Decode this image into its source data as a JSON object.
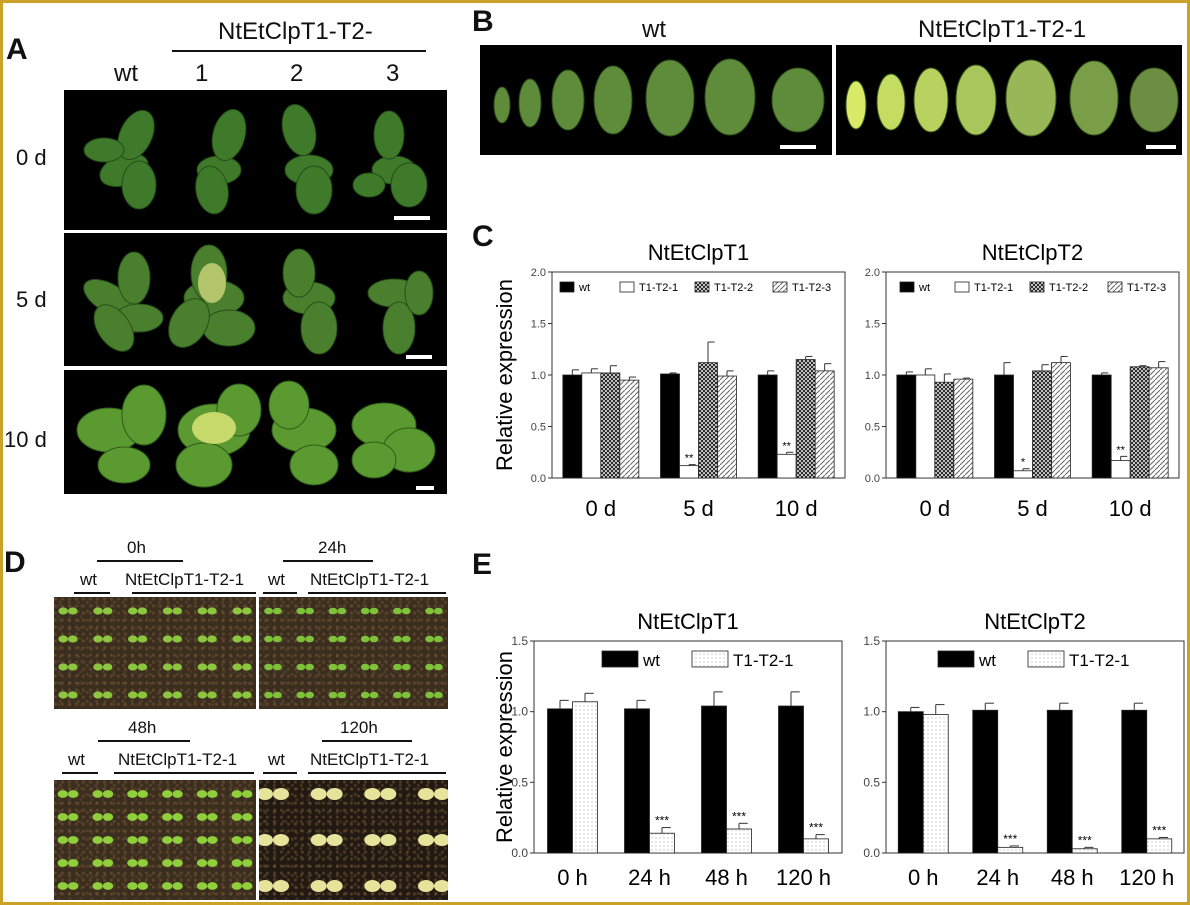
{
  "panels": {
    "A": {
      "letter": "A",
      "group_label": "NtEtClpT1-T2-",
      "col_labels": [
        "wt",
        "1",
        "2",
        "3"
      ],
      "row_labels": [
        "0 d",
        "5 d",
        "10 d"
      ]
    },
    "B": {
      "letter": "B",
      "left_label": "wt",
      "right_label": "NtEtClpT1-T2-1"
    },
    "C": {
      "letter": "C"
    },
    "D": {
      "letter": "D",
      "top_left": {
        "time": "0h",
        "wt": "wt",
        "line": "NtEtClpT1-T2-1"
      },
      "top_right": {
        "time": "24h",
        "wt": "wt",
        "line": "NtEtClpT1-T2-1"
      },
      "bottom_left": {
        "time": "48h",
        "wt": "wt",
        "line": "NtEtClpT1-T2-1"
      },
      "bottom_right": {
        "time": "120h",
        "wt": "wt",
        "line": "NtEtClpT1-T2-1"
      }
    },
    "E": {
      "letter": "E"
    }
  },
  "chart_data": [
    {
      "panel": "C",
      "type": "bar",
      "title": "NtEtClpT1",
      "ylabel": "Relative expression",
      "ylim": [
        0,
        2.0
      ],
      "yticks": [
        "0.0",
        "0.5",
        "1.0",
        "1.5",
        "2.0"
      ],
      "categories": [
        "0 d",
        "5 d",
        "10 d"
      ],
      "legend_position": "top",
      "series": [
        {
          "name": "wt",
          "values": [
            1.0,
            1.01,
            1.0
          ],
          "errors": [
            0.05,
            0.01,
            0.04
          ],
          "fill": "black"
        },
        {
          "name": "T1-T2-1",
          "values": [
            1.02,
            0.12,
            0.23
          ],
          "errors": [
            0.04,
            0.01,
            0.02
          ],
          "fill": "white",
          "sig": [
            "",
            "**",
            "**"
          ]
        },
        {
          "name": "T1-T2-2",
          "values": [
            1.02,
            1.12,
            1.15
          ],
          "errors": [
            0.07,
            0.2,
            0.03
          ],
          "fill": "crosshatch"
        },
        {
          "name": "T1-T2-3",
          "values": [
            0.95,
            0.99,
            1.04
          ],
          "errors": [
            0.03,
            0.05,
            0.07
          ],
          "fill": "hatch"
        }
      ]
    },
    {
      "panel": "C",
      "type": "bar",
      "title": "NtEtClpT2",
      "ylabel": "",
      "ylim": [
        0,
        2.0
      ],
      "yticks": [
        "0.0",
        "0.5",
        "1.0",
        "1.5",
        "2.0"
      ],
      "categories": [
        "0 d",
        "5 d",
        "10 d"
      ],
      "legend_position": "top",
      "series": [
        {
          "name": "wt",
          "values": [
            1.0,
            1.0,
            1.0
          ],
          "errors": [
            0.03,
            0.12,
            0.02
          ],
          "fill": "black"
        },
        {
          "name": "T1-T2-1",
          "values": [
            1.0,
            0.07,
            0.17
          ],
          "errors": [
            0.06,
            0.02,
            0.04
          ],
          "fill": "white",
          "sig": [
            "",
            "*",
            "**"
          ]
        },
        {
          "name": "T1-T2-2",
          "values": [
            0.93,
            1.04,
            1.08
          ],
          "errors": [
            0.08,
            0.06,
            0.01
          ],
          "fill": "crosshatch"
        },
        {
          "name": "T1-T2-3",
          "values": [
            0.96,
            1.12,
            1.07
          ],
          "errors": [
            0.01,
            0.06,
            0.06
          ],
          "fill": "hatch"
        }
      ]
    },
    {
      "panel": "E",
      "type": "bar",
      "title": "NtEtClpT1",
      "ylabel": "Relative expression",
      "ylim": [
        0,
        1.5
      ],
      "yticks": [
        "0.0",
        "0.5",
        "1.0",
        "1.5"
      ],
      "categories": [
        "0 h",
        "24 h",
        "48 h",
        "120 h"
      ],
      "legend_position": "top",
      "series": [
        {
          "name": "wt",
          "values": [
            1.02,
            1.02,
            1.04,
            1.04
          ],
          "errors": [
            0.06,
            0.06,
            0.1,
            0.1
          ],
          "fill": "black"
        },
        {
          "name": "T1-T2-1",
          "values": [
            1.07,
            0.14,
            0.17,
            0.1
          ],
          "errors": [
            0.06,
            0.04,
            0.04,
            0.03
          ],
          "fill": "dots",
          "sig": [
            "",
            "***",
            "***",
            "***"
          ]
        }
      ]
    },
    {
      "panel": "E",
      "type": "bar",
      "title": "NtEtClpT2",
      "ylabel": "",
      "ylim": [
        0,
        1.5
      ],
      "yticks": [
        "0.0",
        "0.5",
        "1.0",
        "1.5"
      ],
      "categories": [
        "0 h",
        "24 h",
        "48 h",
        "120 h"
      ],
      "legend_position": "top",
      "series": [
        {
          "name": "wt",
          "values": [
            1.0,
            1.01,
            1.01,
            1.01
          ],
          "errors": [
            0.03,
            0.05,
            0.05,
            0.05
          ],
          "fill": "black"
        },
        {
          "name": "T1-T2-1",
          "values": [
            0.98,
            0.04,
            0.03,
            0.1
          ],
          "errors": [
            0.07,
            0.01,
            0.01,
            0.01
          ],
          "fill": "dots",
          "sig": [
            "",
            "***",
            "***",
            "***"
          ]
        }
      ]
    }
  ]
}
